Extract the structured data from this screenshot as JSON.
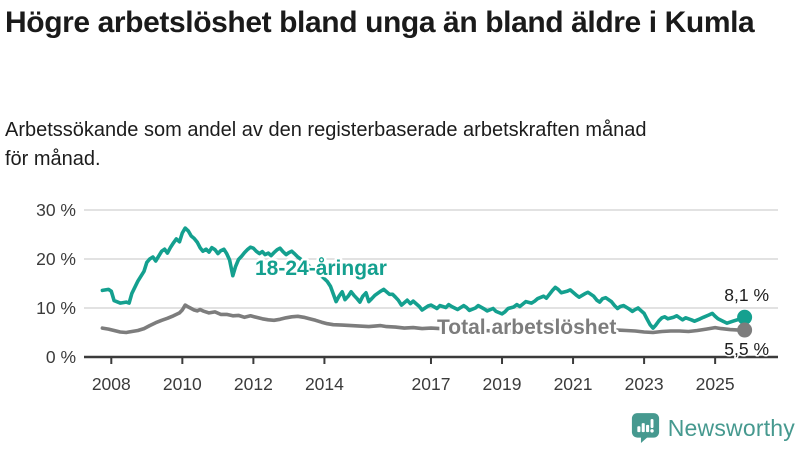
{
  "header": {
    "title": "Högre arbetslöshet bland unga än bland äldre i Kumla",
    "subtitle": "Arbetssökande som andel av den registerbaserade arbetskraften månad för månad."
  },
  "footer": {
    "brand": "Newsworthy",
    "brand_color": "#46998f",
    "logo_icon": "speech-bubble-bar-chart-icon"
  },
  "chart_data": {
    "type": "line",
    "title": "Högre arbetslöshet bland unga än bland äldre i Kumla",
    "subtitle": "Arbetssökande som andel av den registerbaserade arbetskraften månad för månad.",
    "unit": "%",
    "ylim": [
      0,
      30
    ],
    "xlim": [
      2007.6,
      2026.1
    ],
    "grid": "horizontal",
    "grid_color": "#d9d9d9",
    "axis_color": "#3b3b3b",
    "y_ticks": [
      {
        "value": 0,
        "label": "0 %"
      },
      {
        "value": 10,
        "label": "10 %"
      },
      {
        "value": 20,
        "label": "20 %"
      },
      {
        "value": 30,
        "label": "30 %"
      }
    ],
    "x_ticks": [
      {
        "value": 2008,
        "label": "2008"
      },
      {
        "value": 2010,
        "label": "2010"
      },
      {
        "value": 2012,
        "label": "2012"
      },
      {
        "value": 2014,
        "label": "2014"
      },
      {
        "value": 2017,
        "label": "2017"
      },
      {
        "value": 2019,
        "label": "2019"
      },
      {
        "value": 2021,
        "label": "2021"
      },
      {
        "value": 2023,
        "label": "2023"
      },
      {
        "value": 2025,
        "label": "2025"
      }
    ],
    "series": [
      {
        "name": "18-24-åringar",
        "color": "#14a08f",
        "end_label": "8,1 %",
        "end_value": 8.1,
        "points": [
          [
            2007.75,
            13.6
          ],
          [
            2007.92,
            13.8
          ],
          [
            2008.0,
            13.4
          ],
          [
            2008.08,
            11.5
          ],
          [
            2008.25,
            11.0
          ],
          [
            2008.42,
            11.2
          ],
          [
            2008.5,
            11.0
          ],
          [
            2008.58,
            13.0
          ],
          [
            2008.75,
            15.5
          ],
          [
            2008.92,
            17.5
          ],
          [
            2009.0,
            19.3
          ],
          [
            2009.08,
            20.0
          ],
          [
            2009.17,
            20.4
          ],
          [
            2009.25,
            19.6
          ],
          [
            2009.42,
            21.6
          ],
          [
            2009.5,
            22.0
          ],
          [
            2009.58,
            21.2
          ],
          [
            2009.67,
            22.4
          ],
          [
            2009.75,
            23.3
          ],
          [
            2009.83,
            24.1
          ],
          [
            2009.92,
            23.5
          ],
          [
            2010.0,
            25.3
          ],
          [
            2010.08,
            26.3
          ],
          [
            2010.17,
            25.7
          ],
          [
            2010.25,
            24.7
          ],
          [
            2010.33,
            24.2
          ],
          [
            2010.42,
            23.4
          ],
          [
            2010.5,
            22.3
          ],
          [
            2010.58,
            21.6
          ],
          [
            2010.67,
            22.0
          ],
          [
            2010.75,
            21.4
          ],
          [
            2010.83,
            22.3
          ],
          [
            2010.92,
            21.9
          ],
          [
            2011.0,
            21.1
          ],
          [
            2011.08,
            21.7
          ],
          [
            2011.17,
            22.0
          ],
          [
            2011.25,
            21.1
          ],
          [
            2011.33,
            19.8
          ],
          [
            2011.42,
            16.6
          ],
          [
            2011.5,
            18.5
          ],
          [
            2011.58,
            19.9
          ],
          [
            2011.67,
            20.6
          ],
          [
            2011.75,
            21.3
          ],
          [
            2011.83,
            21.9
          ],
          [
            2011.92,
            22.4
          ],
          [
            2012.0,
            22.2
          ],
          [
            2012.08,
            21.6
          ],
          [
            2012.17,
            21.1
          ],
          [
            2012.25,
            21.5
          ],
          [
            2012.33,
            20.9
          ],
          [
            2012.42,
            21.2
          ],
          [
            2012.5,
            20.7
          ],
          [
            2012.58,
            21.3
          ],
          [
            2012.67,
            21.9
          ],
          [
            2012.75,
            22.2
          ],
          [
            2012.83,
            21.5
          ],
          [
            2012.92,
            20.9
          ],
          [
            2013.0,
            21.3
          ],
          [
            2013.08,
            21.6
          ],
          [
            2013.17,
            21.0
          ],
          [
            2013.25,
            20.4
          ],
          [
            2013.42,
            19.5
          ],
          [
            2013.58,
            18.5
          ],
          [
            2013.75,
            17.5
          ],
          [
            2013.92,
            16.5
          ],
          [
            2014.08,
            15.4
          ],
          [
            2014.17,
            14.4
          ],
          [
            2014.33,
            11.3
          ],
          [
            2014.42,
            12.5
          ],
          [
            2014.5,
            13.3
          ],
          [
            2014.58,
            11.7
          ],
          [
            2014.67,
            12.4
          ],
          [
            2014.75,
            13.3
          ],
          [
            2014.83,
            12.6
          ],
          [
            2014.92,
            11.9
          ],
          [
            2015.0,
            11.2
          ],
          [
            2015.08,
            12.4
          ],
          [
            2015.17,
            13.1
          ],
          [
            2015.25,
            11.3
          ],
          [
            2015.33,
            11.9
          ],
          [
            2015.42,
            12.6
          ],
          [
            2015.58,
            13.4
          ],
          [
            2015.67,
            13.8
          ],
          [
            2015.83,
            12.8
          ],
          [
            2015.92,
            12.8
          ],
          [
            2016.0,
            12.2
          ],
          [
            2016.08,
            11.6
          ],
          [
            2016.17,
            10.6
          ],
          [
            2016.33,
            11.6
          ],
          [
            2016.42,
            10.9
          ],
          [
            2016.5,
            11.4
          ],
          [
            2016.67,
            10.3
          ],
          [
            2016.75,
            9.6
          ],
          [
            2016.92,
            10.4
          ],
          [
            2017.0,
            10.6
          ],
          [
            2017.17,
            9.9
          ],
          [
            2017.25,
            10.5
          ],
          [
            2017.42,
            10.1
          ],
          [
            2017.5,
            10.7
          ],
          [
            2017.58,
            10.3
          ],
          [
            2017.75,
            9.7
          ],
          [
            2017.92,
            10.5
          ],
          [
            2018.0,
            10.1
          ],
          [
            2018.08,
            9.5
          ],
          [
            2018.25,
            10.0
          ],
          [
            2018.33,
            10.5
          ],
          [
            2018.5,
            9.8
          ],
          [
            2018.58,
            9.4
          ],
          [
            2018.75,
            9.9
          ],
          [
            2018.83,
            9.3
          ],
          [
            2019.0,
            8.8
          ],
          [
            2019.08,
            9.2
          ],
          [
            2019.17,
            9.9
          ],
          [
            2019.33,
            10.2
          ],
          [
            2019.42,
            10.7
          ],
          [
            2019.5,
            10.3
          ],
          [
            2019.67,
            11.3
          ],
          [
            2019.83,
            11.0
          ],
          [
            2019.92,
            11.4
          ],
          [
            2020.0,
            11.9
          ],
          [
            2020.17,
            12.4
          ],
          [
            2020.25,
            12.0
          ],
          [
            2020.42,
            13.6
          ],
          [
            2020.5,
            14.2
          ],
          [
            2020.58,
            13.8
          ],
          [
            2020.67,
            13.1
          ],
          [
            2020.83,
            13.4
          ],
          [
            2020.92,
            13.7
          ],
          [
            2021.08,
            12.7
          ],
          [
            2021.17,
            12.2
          ],
          [
            2021.33,
            12.9
          ],
          [
            2021.42,
            13.2
          ],
          [
            2021.58,
            12.4
          ],
          [
            2021.67,
            11.6
          ],
          [
            2021.75,
            11.2
          ],
          [
            2021.83,
            11.9
          ],
          [
            2021.92,
            12.1
          ],
          [
            2022.08,
            11.3
          ],
          [
            2022.17,
            10.5
          ],
          [
            2022.25,
            9.9
          ],
          [
            2022.33,
            10.3
          ],
          [
            2022.42,
            10.5
          ],
          [
            2022.58,
            9.8
          ],
          [
            2022.67,
            9.3
          ],
          [
            2022.75,
            9.7
          ],
          [
            2022.83,
            10.0
          ],
          [
            2022.92,
            9.4
          ],
          [
            2023.0,
            8.9
          ],
          [
            2023.08,
            7.8
          ],
          [
            2023.17,
            6.6
          ],
          [
            2023.25,
            5.9
          ],
          [
            2023.33,
            6.5
          ],
          [
            2023.42,
            7.4
          ],
          [
            2023.5,
            8.0
          ],
          [
            2023.58,
            8.2
          ],
          [
            2023.67,
            7.8
          ],
          [
            2023.83,
            8.1
          ],
          [
            2023.92,
            8.4
          ],
          [
            2024.0,
            8.0
          ],
          [
            2024.08,
            7.6
          ],
          [
            2024.17,
            8.0
          ],
          [
            2024.33,
            7.6
          ],
          [
            2024.42,
            7.3
          ],
          [
            2024.58,
            7.8
          ],
          [
            2024.67,
            8.1
          ],
          [
            2024.83,
            8.6
          ],
          [
            2024.92,
            8.9
          ],
          [
            2025.0,
            8.3
          ],
          [
            2025.08,
            7.8
          ],
          [
            2025.25,
            7.2
          ],
          [
            2025.33,
            6.9
          ],
          [
            2025.5,
            7.3
          ],
          [
            2025.67,
            7.7
          ],
          [
            2025.83,
            8.1
          ]
        ]
      },
      {
        "name": "Total arbetslöshet",
        "color": "#7d7d7d",
        "end_label": "5,5 %",
        "end_value": 5.5,
        "points": [
          [
            2007.75,
            5.9
          ],
          [
            2007.92,
            5.7
          ],
          [
            2008.08,
            5.4
          ],
          [
            2008.25,
            5.1
          ],
          [
            2008.42,
            5.0
          ],
          [
            2008.58,
            5.2
          ],
          [
            2008.75,
            5.4
          ],
          [
            2008.92,
            5.8
          ],
          [
            2009.08,
            6.4
          ],
          [
            2009.25,
            7.0
          ],
          [
            2009.42,
            7.5
          ],
          [
            2009.58,
            7.9
          ],
          [
            2009.75,
            8.4
          ],
          [
            2009.92,
            9.0
          ],
          [
            2010.0,
            9.6
          ],
          [
            2010.08,
            10.6
          ],
          [
            2010.17,
            10.2
          ],
          [
            2010.33,
            9.6
          ],
          [
            2010.42,
            9.4
          ],
          [
            2010.5,
            9.7
          ],
          [
            2010.58,
            9.4
          ],
          [
            2010.75,
            9.0
          ],
          [
            2010.92,
            9.2
          ],
          [
            2011.08,
            8.7
          ],
          [
            2011.25,
            8.7
          ],
          [
            2011.42,
            8.4
          ],
          [
            2011.58,
            8.5
          ],
          [
            2011.75,
            8.1
          ],
          [
            2011.92,
            8.4
          ],
          [
            2012.08,
            8.1
          ],
          [
            2012.25,
            7.8
          ],
          [
            2012.42,
            7.6
          ],
          [
            2012.58,
            7.5
          ],
          [
            2012.75,
            7.7
          ],
          [
            2012.92,
            8.0
          ],
          [
            2013.08,
            8.2
          ],
          [
            2013.25,
            8.3
          ],
          [
            2013.42,
            8.1
          ],
          [
            2013.58,
            7.8
          ],
          [
            2013.75,
            7.5
          ],
          [
            2013.92,
            7.1
          ],
          [
            2014.08,
            6.8
          ],
          [
            2014.25,
            6.6
          ],
          [
            2014.5,
            6.5
          ],
          [
            2014.75,
            6.4
          ],
          [
            2015.0,
            6.3
          ],
          [
            2015.25,
            6.2
          ],
          [
            2015.42,
            6.3
          ],
          [
            2015.58,
            6.4
          ],
          [
            2015.75,
            6.2
          ],
          [
            2016.0,
            6.1
          ],
          [
            2016.25,
            5.9
          ],
          [
            2016.5,
            6.0
          ],
          [
            2016.75,
            5.8
          ],
          [
            2017.0,
            5.9
          ],
          [
            2017.25,
            5.8
          ],
          [
            2017.5,
            5.7
          ],
          [
            2017.75,
            5.6
          ],
          [
            2018.0,
            5.6
          ],
          [
            2018.25,
            5.5
          ],
          [
            2018.5,
            5.4
          ],
          [
            2018.75,
            5.3
          ],
          [
            2019.0,
            5.2
          ],
          [
            2019.25,
            5.3
          ],
          [
            2019.5,
            5.4
          ],
          [
            2019.75,
            5.5
          ],
          [
            2020.0,
            5.8
          ],
          [
            2020.25,
            6.6
          ],
          [
            2020.5,
            7.2
          ],
          [
            2020.75,
            7.0
          ],
          [
            2021.0,
            6.7
          ],
          [
            2021.25,
            6.4
          ],
          [
            2021.5,
            6.1
          ],
          [
            2021.75,
            5.9
          ],
          [
            2022.0,
            5.7
          ],
          [
            2022.25,
            5.5
          ],
          [
            2022.5,
            5.4
          ],
          [
            2022.75,
            5.3
          ],
          [
            2023.0,
            5.1
          ],
          [
            2023.25,
            5.0
          ],
          [
            2023.5,
            5.2
          ],
          [
            2023.75,
            5.3
          ],
          [
            2024.0,
            5.3
          ],
          [
            2024.25,
            5.2
          ],
          [
            2024.5,
            5.4
          ],
          [
            2024.75,
            5.7
          ],
          [
            2025.0,
            6.0
          ],
          [
            2025.17,
            5.8
          ],
          [
            2025.42,
            5.6
          ],
          [
            2025.67,
            5.5
          ],
          [
            2025.83,
            5.5
          ]
        ]
      }
    ]
  }
}
